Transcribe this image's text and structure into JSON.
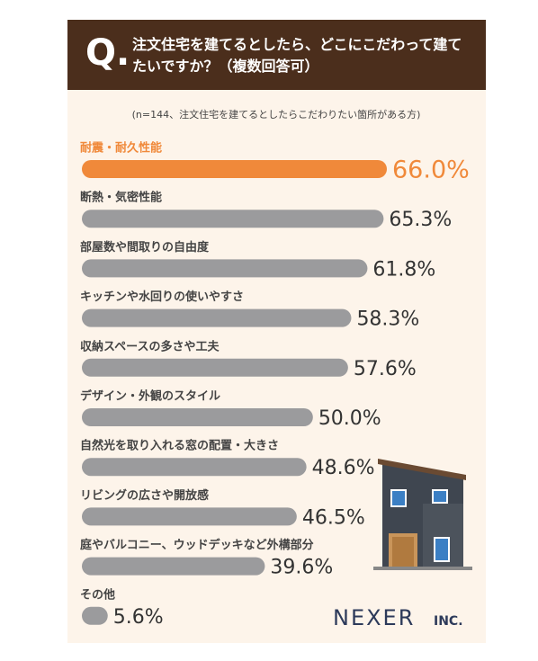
{
  "chart_data": {
    "type": "bar",
    "orientation": "horizontal",
    "question_mark": "Q.",
    "title": "注文住宅を建てるとしたら、どこにこだわって建てたいですか？（複数回答可）",
    "subtitle": "(n=144、注文住宅を建てるとしたらこだわりたい箇所がある方)",
    "categories": [
      "耐震・耐久性能",
      "断熱・気密性能",
      "部屋数や間取りの自由度",
      "キッチンや水回りの使いやすさ",
      "収納スペースの多さや工夫",
      "デザイン・外観のスタイル",
      "自然光を取り入れる窓の配置・大きさ",
      "リビングの広さや開放感",
      "庭やバルコニー、ウッドデッキなど外構部分",
      "その他"
    ],
    "values": [
      66.0,
      65.3,
      61.8,
      58.3,
      57.6,
      50.0,
      48.6,
      46.5,
      39.6,
      5.6
    ],
    "value_labels": [
      "66.0%",
      "65.3%",
      "61.8%",
      "58.3%",
      "57.6%",
      "50.0%",
      "48.6%",
      "46.5%",
      "39.6%",
      "5.6%"
    ],
    "colors": [
      "#f0893a",
      "#9b9b9d",
      "#9b9b9d",
      "#9b9b9d",
      "#9b9b9d",
      "#9b9b9d",
      "#9b9b9d",
      "#9b9b9d",
      "#9b9b9d",
      "#9b9b9d"
    ]
  },
  "footer": {
    "brand": "NEXER",
    "brand_suffix": "INC."
  }
}
